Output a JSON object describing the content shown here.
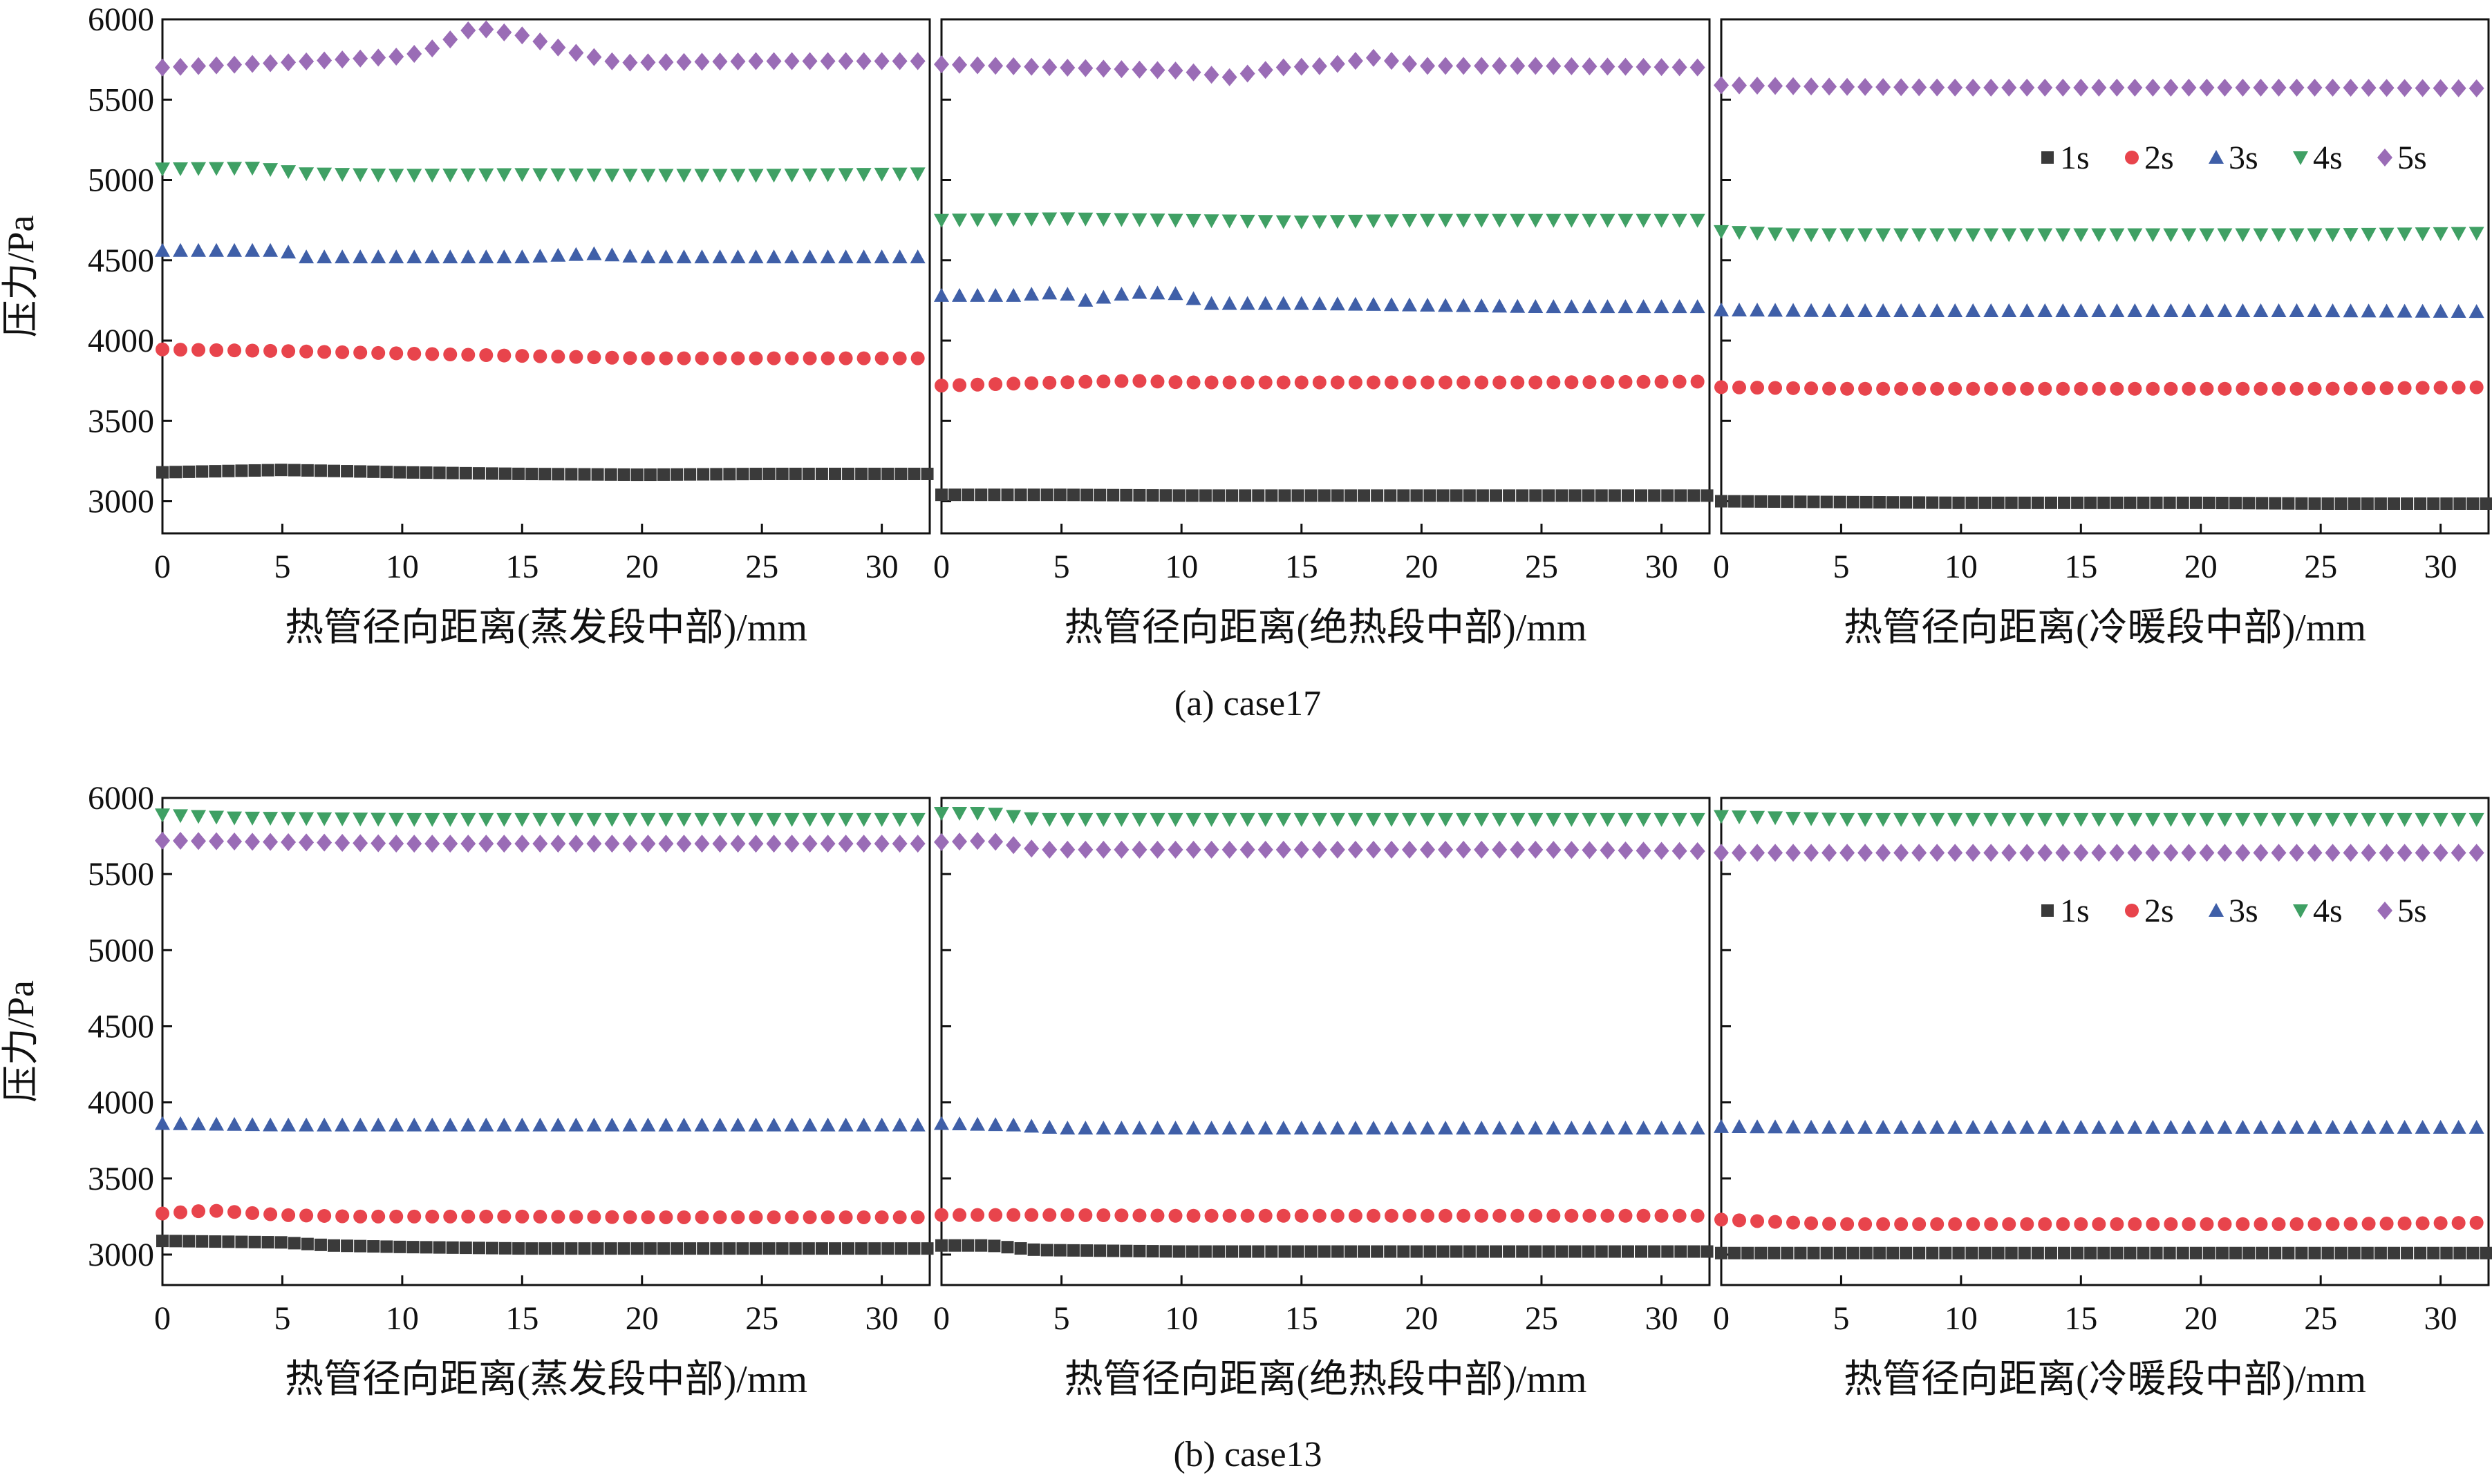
{
  "figure": {
    "captions": [
      "(a) case17",
      "(b) case13"
    ]
  },
  "legend": {
    "items": [
      {
        "label": "1s",
        "color": "#3a3a3a",
        "marker": "square"
      },
      {
        "label": "2s",
        "color": "#e8444c",
        "marker": "circle"
      },
      {
        "label": "3s",
        "color": "#3f5fa8",
        "marker": "triangle-up"
      },
      {
        "label": "4s",
        "color": "#3fa064",
        "marker": "triangle-down"
      },
      {
        "label": "5s",
        "color": "#9a6cb6",
        "marker": "diamond"
      }
    ]
  },
  "axes": {
    "ylabel": "压力/Pa",
    "ylim": [
      2800,
      6000
    ],
    "yticks": [
      3000,
      3500,
      4000,
      4500,
      5000,
      5500,
      6000
    ],
    "xlim": [
      0,
      32
    ],
    "xticks": [
      0,
      5,
      10,
      15,
      20,
      25,
      30
    ]
  },
  "chart_data": [
    {
      "type": "scatter",
      "group": "(a) case17",
      "xlabel": "热管径向距离(蒸发段中部)/mm",
      "series": [
        {
          "name": "1s",
          "points": [
            [
              0,
              3180
            ],
            [
              5,
              3195
            ],
            [
              10,
              3180
            ],
            [
              15,
              3170
            ],
            [
              20,
              3165
            ],
            [
              25,
              3170
            ],
            [
              32,
              3170
            ]
          ]
        },
        {
          "name": "2s",
          "points": [
            [
              0,
              3945
            ],
            [
              5,
              3935
            ],
            [
              10,
              3920
            ],
            [
              15,
              3905
            ],
            [
              20,
              3890
            ],
            [
              25,
              3890
            ],
            [
              32,
              3890
            ]
          ]
        },
        {
          "name": "3s",
          "points": [
            [
              0,
              4560
            ],
            [
              5,
              4560
            ],
            [
              6,
              4520
            ],
            [
              10,
              4520
            ],
            [
              15,
              4520
            ],
            [
              18,
              4540
            ],
            [
              20,
              4520
            ],
            [
              25,
              4520
            ],
            [
              32,
              4520
            ]
          ]
        },
        {
          "name": "4s",
          "points": [
            [
              0,
              5070
            ],
            [
              4,
              5075
            ],
            [
              6,
              5040
            ],
            [
              10,
              5030
            ],
            [
              15,
              5035
            ],
            [
              20,
              5030
            ],
            [
              25,
              5030
            ],
            [
              32,
              5040
            ]
          ]
        },
        {
          "name": "5s",
          "points": [
            [
              0,
              5700
            ],
            [
              5,
              5730
            ],
            [
              10,
              5770
            ],
            [
              11,
              5800
            ],
            [
              13,
              5950
            ],
            [
              15,
              5900
            ],
            [
              17,
              5800
            ],
            [
              19,
              5730
            ],
            [
              25,
              5740
            ],
            [
              32,
              5740
            ]
          ]
        }
      ]
    },
    {
      "type": "scatter",
      "group": "(a) case17",
      "xlabel": "热管径向距离(绝热段中部)/mm",
      "series": [
        {
          "name": "1s",
          "points": [
            [
              0,
              3040
            ],
            [
              5,
              3040
            ],
            [
              10,
              3035
            ],
            [
              15,
              3035
            ],
            [
              20,
              3035
            ],
            [
              25,
              3035
            ],
            [
              32,
              3035
            ]
          ]
        },
        {
          "name": "2s",
          "points": [
            [
              0,
              3720
            ],
            [
              5,
              3740
            ],
            [
              8,
              3750
            ],
            [
              10,
              3740
            ],
            [
              15,
              3740
            ],
            [
              20,
              3740
            ],
            [
              25,
              3740
            ],
            [
              32,
              3745
            ]
          ]
        },
        {
          "name": "3s",
          "points": [
            [
              0,
              4280
            ],
            [
              3,
              4280
            ],
            [
              5,
              4300
            ],
            [
              6,
              4250
            ],
            [
              8,
              4300
            ],
            [
              10,
              4290
            ],
            [
              11,
              4230
            ],
            [
              15,
              4230
            ],
            [
              20,
              4220
            ],
            [
              25,
              4210
            ],
            [
              32,
              4210
            ]
          ]
        },
        {
          "name": "4s",
          "points": [
            [
              0,
              4750
            ],
            [
              5,
              4760
            ],
            [
              10,
              4750
            ],
            [
              15,
              4740
            ],
            [
              20,
              4750
            ],
            [
              25,
              4750
            ],
            [
              32,
              4750
            ]
          ]
        },
        {
          "name": "5s",
          "points": [
            [
              0,
              5720
            ],
            [
              5,
              5700
            ],
            [
              10,
              5680
            ],
            [
              12,
              5640
            ],
            [
              14,
              5700
            ],
            [
              16,
              5710
            ],
            [
              18,
              5760
            ],
            [
              20,
              5710
            ],
            [
              25,
              5710
            ],
            [
              32,
              5700
            ]
          ]
        }
      ]
    },
    {
      "type": "scatter",
      "group": "(a) case17",
      "xlabel": "热管径向距离(冷暖段中部)/mm",
      "series": [
        {
          "name": "1s",
          "points": [
            [
              0,
              3000
            ],
            [
              5,
              2995
            ],
            [
              10,
              2990
            ],
            [
              15,
              2990
            ],
            [
              20,
              2990
            ],
            [
              25,
              2985
            ],
            [
              32,
              2985
            ]
          ]
        },
        {
          "name": "2s",
          "points": [
            [
              0,
              3710
            ],
            [
              5,
              3700
            ],
            [
              10,
              3700
            ],
            [
              15,
              3700
            ],
            [
              20,
              3700
            ],
            [
              25,
              3700
            ],
            [
              32,
              3710
            ]
          ]
        },
        {
          "name": "3s",
          "points": [
            [
              0,
              4190
            ],
            [
              5,
              4185
            ],
            [
              10,
              4185
            ],
            [
              15,
              4185
            ],
            [
              20,
              4185
            ],
            [
              25,
              4185
            ],
            [
              32,
              4180
            ]
          ]
        },
        {
          "name": "4s",
          "points": [
            [
              0,
              4680
            ],
            [
              3,
              4660
            ],
            [
              10,
              4660
            ],
            [
              15,
              4660
            ],
            [
              20,
              4660
            ],
            [
              25,
              4660
            ],
            [
              32,
              4670
            ]
          ]
        },
        {
          "name": "5s",
          "points": [
            [
              0,
              5590
            ],
            [
              5,
              5580
            ],
            [
              10,
              5575
            ],
            [
              15,
              5575
            ],
            [
              20,
              5575
            ],
            [
              25,
              5575
            ],
            [
              32,
              5570
            ]
          ]
        }
      ]
    },
    {
      "type": "scatter",
      "group": "(b) case13",
      "xlabel": "热管径向距离(蒸发段中部)/mm",
      "series": [
        {
          "name": "1s",
          "points": [
            [
              0,
              3090
            ],
            [
              5,
              3080
            ],
            [
              7,
              3060
            ],
            [
              10,
              3050
            ],
            [
              15,
              3040
            ],
            [
              20,
              3040
            ],
            [
              25,
              3040
            ],
            [
              32,
              3040
            ]
          ]
        },
        {
          "name": "2s",
          "points": [
            [
              0,
              3270
            ],
            [
              2,
              3290
            ],
            [
              5,
              3260
            ],
            [
              8,
              3250
            ],
            [
              15,
              3250
            ],
            [
              20,
              3245
            ],
            [
              25,
              3245
            ],
            [
              32,
              3245
            ]
          ]
        },
        {
          "name": "3s",
          "points": [
            [
              0,
              3860
            ],
            [
              5,
              3850
            ],
            [
              10,
              3850
            ],
            [
              15,
              3850
            ],
            [
              20,
              3850
            ],
            [
              25,
              3850
            ],
            [
              32,
              3850
            ]
          ]
        },
        {
          "name": "4s",
          "points": [
            [
              0,
              5890
            ],
            [
              3,
              5870
            ],
            [
              10,
              5860
            ],
            [
              15,
              5860
            ],
            [
              20,
              5860
            ],
            [
              25,
              5860
            ],
            [
              32,
              5860
            ]
          ]
        },
        {
          "name": "5s",
          "points": [
            [
              0,
              5720
            ],
            [
              5,
              5710
            ],
            [
              10,
              5700
            ],
            [
              15,
              5700
            ],
            [
              20,
              5700
            ],
            [
              25,
              5700
            ],
            [
              32,
              5700
            ]
          ]
        }
      ]
    },
    {
      "type": "scatter",
      "group": "(b) case13",
      "xlabel": "热管径向距离(绝热段中部)/mm",
      "series": [
        {
          "name": "1s",
          "points": [
            [
              0,
              3060
            ],
            [
              2,
              3060
            ],
            [
              4,
              3030
            ],
            [
              10,
              3020
            ],
            [
              15,
              3020
            ],
            [
              20,
              3020
            ],
            [
              25,
              3020
            ],
            [
              32,
              3020
            ]
          ]
        },
        {
          "name": "2s",
          "points": [
            [
              0,
              3260
            ],
            [
              5,
              3260
            ],
            [
              10,
              3255
            ],
            [
              15,
              3255
            ],
            [
              20,
              3255
            ],
            [
              25,
              3255
            ],
            [
              32,
              3255
            ]
          ]
        },
        {
          "name": "3s",
          "points": [
            [
              0,
              3860
            ],
            [
              3,
              3850
            ],
            [
              5,
              3830
            ],
            [
              10,
              3830
            ],
            [
              15,
              3830
            ],
            [
              20,
              3830
            ],
            [
              25,
              3830
            ],
            [
              32,
              3830
            ]
          ]
        },
        {
          "name": "4s",
          "points": [
            [
              0,
              5900
            ],
            [
              2,
              5900
            ],
            [
              4,
              5860
            ],
            [
              10,
              5860
            ],
            [
              15,
              5860
            ],
            [
              20,
              5860
            ],
            [
              25,
              5860
            ],
            [
              32,
              5860
            ]
          ]
        },
        {
          "name": "5s",
          "points": [
            [
              0,
              5710
            ],
            [
              2,
              5720
            ],
            [
              4,
              5660
            ],
            [
              10,
              5660
            ],
            [
              15,
              5660
            ],
            [
              20,
              5660
            ],
            [
              25,
              5660
            ],
            [
              32,
              5650
            ]
          ]
        }
      ]
    },
    {
      "type": "scatter",
      "group": "(b) case13",
      "xlabel": "热管径向距离(冷暖段中部)/mm",
      "series": [
        {
          "name": "1s",
          "points": [
            [
              0,
              3010
            ],
            [
              5,
              3010
            ],
            [
              10,
              3010
            ],
            [
              15,
              3010
            ],
            [
              20,
              3010
            ],
            [
              25,
              3010
            ],
            [
              32,
              3010
            ]
          ]
        },
        {
          "name": "2s",
          "points": [
            [
              0,
              3230
            ],
            [
              3,
              3210
            ],
            [
              5,
              3200
            ],
            [
              10,
              3200
            ],
            [
              15,
              3200
            ],
            [
              20,
              3200
            ],
            [
              25,
              3200
            ],
            [
              32,
              3210
            ]
          ]
        },
        {
          "name": "3s",
          "points": [
            [
              0,
              3840
            ],
            [
              5,
              3835
            ],
            [
              10,
              3835
            ],
            [
              15,
              3835
            ],
            [
              20,
              3835
            ],
            [
              25,
              3835
            ],
            [
              32,
              3835
            ]
          ]
        },
        {
          "name": "4s",
          "points": [
            [
              0,
              5880
            ],
            [
              5,
              5860
            ],
            [
              10,
              5860
            ],
            [
              15,
              5860
            ],
            [
              20,
              5860
            ],
            [
              25,
              5860
            ],
            [
              32,
              5860
            ]
          ]
        },
        {
          "name": "5s",
          "points": [
            [
              0,
              5640
            ],
            [
              5,
              5640
            ],
            [
              10,
              5640
            ],
            [
              15,
              5640
            ],
            [
              20,
              5640
            ],
            [
              25,
              5640
            ],
            [
              32,
              5640
            ]
          ]
        }
      ]
    }
  ]
}
